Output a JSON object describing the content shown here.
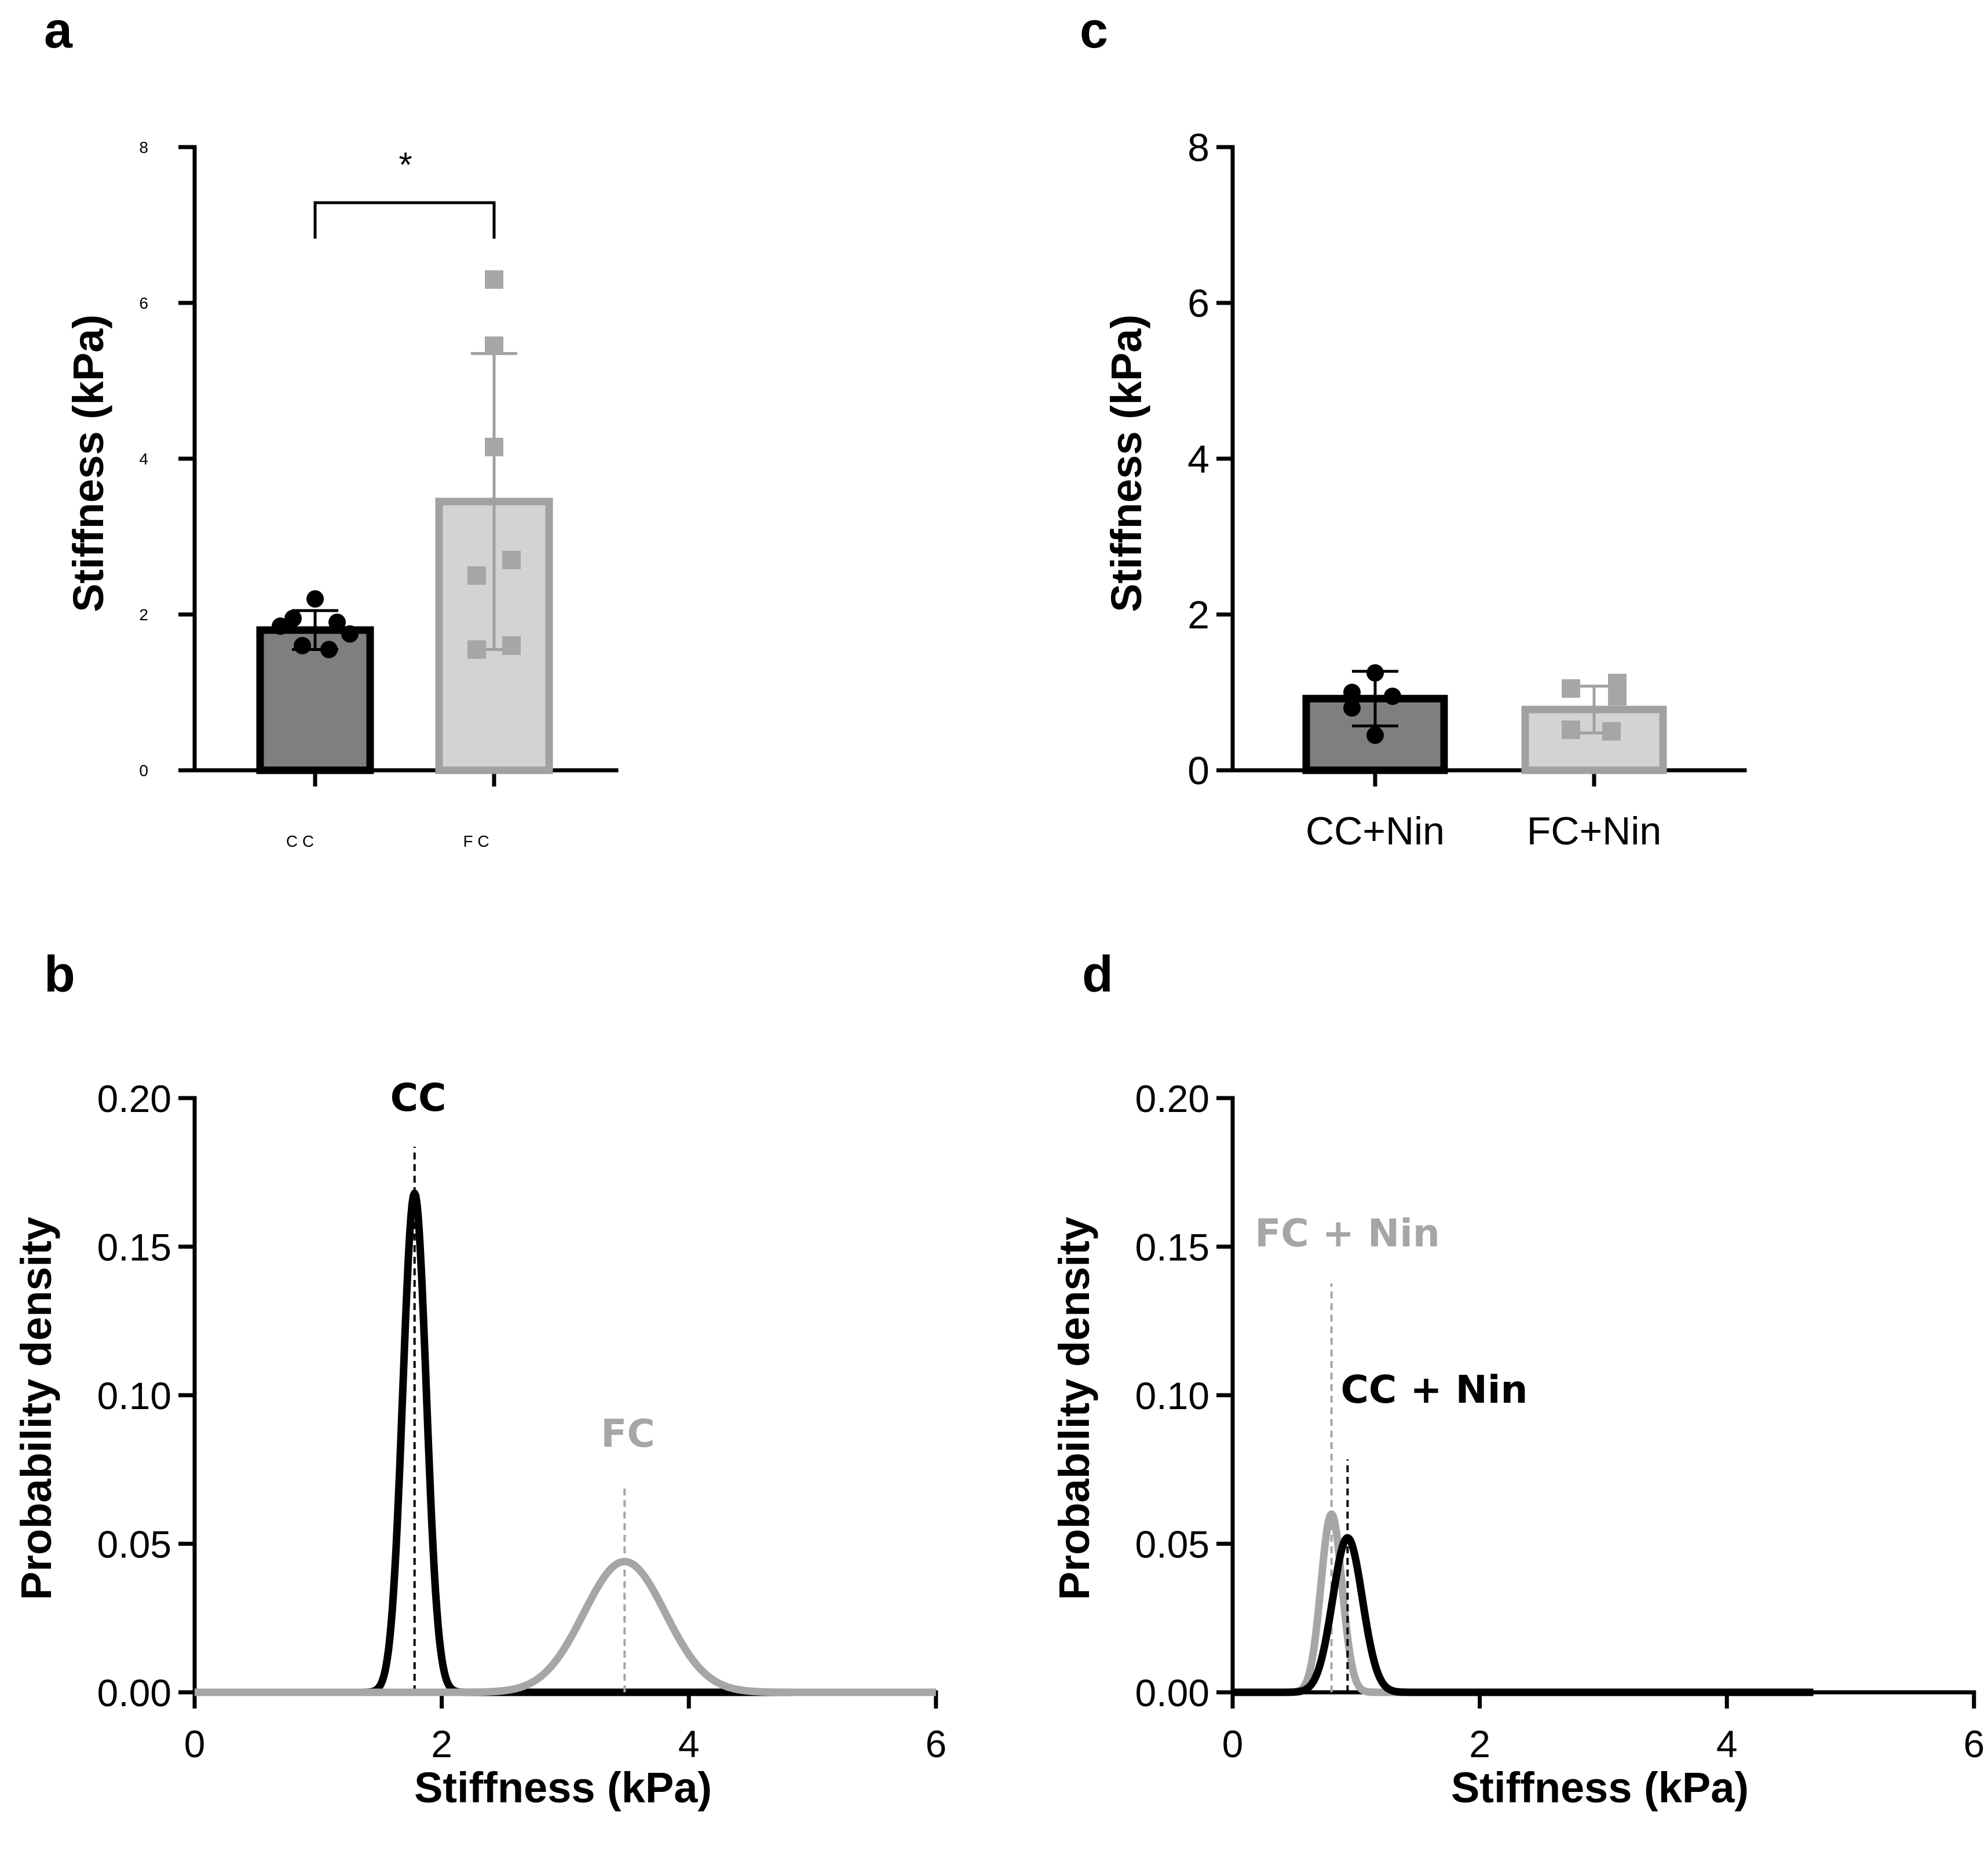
{
  "colors": {
    "black": "#000000",
    "cc_fill": "#7f7f7f",
    "fc_fill": "#d3d3d5",
    "fc_stroke": "#a1a1a3",
    "fc_curve": "#a6a6a6"
  },
  "chart_data": [
    {
      "id": "a",
      "panel_letter": "a",
      "type": "bar",
      "ylabel": "Stiffness (kPa)",
      "ylim": [
        0,
        8
      ],
      "yticks": [
        "0",
        "2",
        "4",
        "6",
        "8"
      ],
      "categories": [
        "C C",
        "F C"
      ],
      "series": [
        {
          "name": "C C",
          "mean": 1.8,
          "sd": 0.25,
          "points": [
            2.2,
            1.95,
            1.9,
            1.85,
            1.75,
            1.6,
            1.55
          ]
        },
        {
          "name": "F C",
          "mean": 3.45,
          "sd": 1.9,
          "points": [
            6.3,
            5.45,
            4.15,
            2.7,
            2.5,
            1.6,
            1.55
          ]
        }
      ],
      "significance": "*"
    },
    {
      "id": "c",
      "panel_letter": "c",
      "type": "bar",
      "ylabel": "Stiffness (kPa)",
      "ylim": [
        0,
        8
      ],
      "yticks": [
        "0",
        "2",
        "4",
        "6",
        "8"
      ],
      "categories": [
        "CC+Nin",
        "FC+Nin"
      ],
      "series": [
        {
          "name": "CC+Nin",
          "mean": 0.92,
          "sd": 0.35,
          "points": [
            1.25,
            1.0,
            0.95,
            0.8,
            0.45
          ]
        },
        {
          "name": "FC+Nin",
          "mean": 0.78,
          "sd": 0.3,
          "points": [
            1.12,
            1.05,
            0.95,
            0.52,
            0.5
          ]
        }
      ]
    },
    {
      "id": "b",
      "panel_letter": "b",
      "type": "line",
      "xlabel": "Stiffness (kPa)",
      "ylabel": "Probability density",
      "xlim": [
        0,
        6
      ],
      "ylim": [
        0,
        0.2
      ],
      "xticks": [
        "0",
        "2",
        "4",
        "6"
      ],
      "yticks": [
        "0.00",
        "0.05",
        "0.10",
        "0.15",
        "0.20"
      ],
      "series": [
        {
          "name": "CC",
          "label": "CC",
          "mean": 1.78,
          "sd": 0.095,
          "peak": 0.168,
          "x_end": 6.0
        },
        {
          "name": "FC",
          "label": "FC",
          "mean": 3.48,
          "sd": 0.33,
          "peak": 0.044,
          "x_end": 6.0
        }
      ],
      "annotations": [
        "CC",
        "FC"
      ]
    },
    {
      "id": "d",
      "panel_letter": "d",
      "type": "line",
      "xlabel": "Stiffness (kPa)",
      "ylabel": "Probability density",
      "xlim": [
        0,
        6
      ],
      "ylim": [
        0,
        0.2
      ],
      "xticks": [
        "0",
        "2",
        "4",
        "6"
      ],
      "yticks": [
        "0.00",
        "0.05",
        "0.10",
        "0.15",
        "0.20"
      ],
      "series": [
        {
          "name": "FC + Nin",
          "label": "FC + Nin",
          "mean": 0.8,
          "sd": 0.085,
          "peak": 0.06,
          "x_end": 4.7
        },
        {
          "name": "CC + Nin",
          "label": "CC + Nin",
          "mean": 0.93,
          "sd": 0.12,
          "peak": 0.052,
          "x_end": 4.7
        }
      ],
      "annotations": [
        "FC + Nin",
        "CC + Nin"
      ]
    }
  ]
}
